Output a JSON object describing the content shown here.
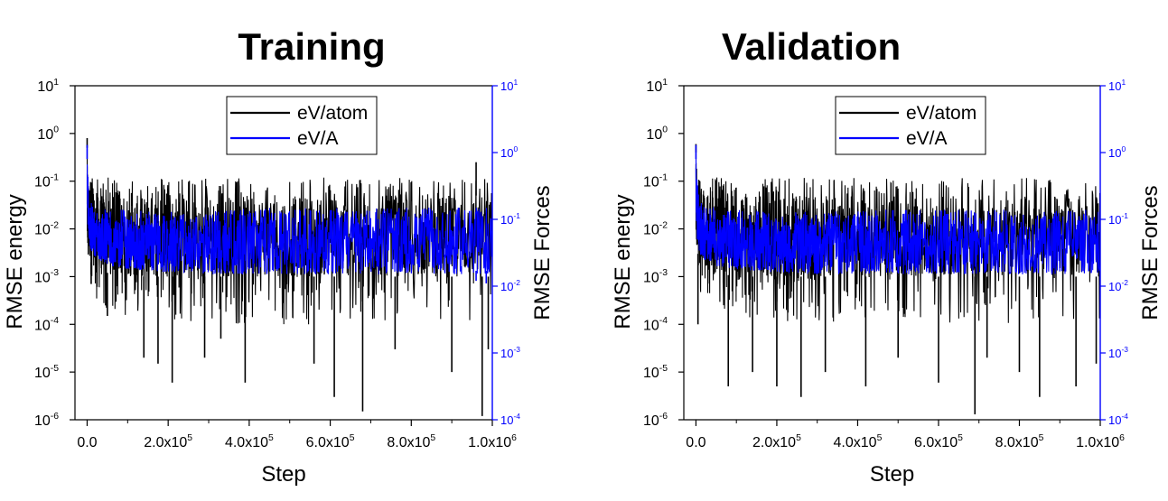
{
  "chart_data": [
    {
      "type": "line",
      "title": "Training",
      "xlabel": "Step",
      "ylabel": "RMSE energy",
      "y2label": "RMSE Forces",
      "xlim": [
        -30000,
        1000000
      ],
      "ylim": [
        1e-06,
        10
      ],
      "y2lim": [
        0.0001,
        10
      ],
      "yscale": "log",
      "y2scale": "log",
      "x_ticks": [
        {
          "v": 0,
          "label": "0.0",
          "exp": ""
        },
        {
          "v": 200000,
          "label": "2.0x10",
          "exp": "5"
        },
        {
          "v": 400000,
          "label": "4.0x10",
          "exp": "5"
        },
        {
          "v": 600000,
          "label": "6.0x10",
          "exp": "5"
        },
        {
          "v": 800000,
          "label": "8.0x10",
          "exp": "5"
        },
        {
          "v": 1000000,
          "label": "1.0x10",
          "exp": "6"
        }
      ],
      "y_ticks": [
        {
          "v": 10,
          "label": "10",
          "exp": "1"
        },
        {
          "v": 1,
          "label": "10",
          "exp": "0"
        },
        {
          "v": 0.1,
          "label": "10",
          "exp": "-1"
        },
        {
          "v": 0.01,
          "label": "10",
          "exp": "-2"
        },
        {
          "v": 0.001,
          "label": "10",
          "exp": "-3"
        },
        {
          "v": 0.0001,
          "label": "10",
          "exp": "-4"
        },
        {
          "v": 1e-05,
          "label": "10",
          "exp": "-5"
        },
        {
          "v": 1e-06,
          "label": "10",
          "exp": "-6"
        }
      ],
      "y2_ticks": [
        {
          "v": 10,
          "label": "10",
          "exp": "1"
        },
        {
          "v": 1,
          "label": "10",
          "exp": "0"
        },
        {
          "v": 0.1,
          "label": "10",
          "exp": "-1"
        },
        {
          "v": 0.01,
          "label": "10",
          "exp": "-2"
        },
        {
          "v": 0.001,
          "label": "10",
          "exp": "-3"
        },
        {
          "v": 0.0001,
          "label": "10",
          "exp": "-4"
        }
      ],
      "legend_position": "top-center",
      "series": [
        {
          "name": "eV/atom",
          "axis": "left",
          "color": "#000000",
          "x": [
            0,
            2000,
            5000,
            10000,
            20000,
            50000,
            100000,
            200000,
            300000,
            400000,
            500000,
            600000,
            700000,
            800000,
            900000,
            1000000
          ],
          "upper": [
            0.8,
            0.3,
            0.15,
            0.12,
            0.12,
            0.12,
            0.12,
            0.12,
            0.12,
            0.12,
            0.12,
            0.12,
            0.12,
            0.12,
            0.12,
            0.12
          ],
          "lower": [
            0.01,
            0.003,
            0.001,
            0.0005,
            0.0003,
            0.0002,
            0.00015,
            0.00012,
            0.0001,
            0.0001,
            0.0001,
            0.0001,
            0.0001,
            0.0001,
            0.0001,
            0.0001
          ],
          "band_upper": [
            0.5,
            0.15,
            0.08,
            0.06,
            0.05,
            0.05,
            0.05,
            0.05,
            0.05,
            0.05,
            0.05,
            0.05,
            0.05,
            0.05,
            0.05,
            0.05
          ],
          "band_lower": [
            0.01,
            0.005,
            0.003,
            0.002,
            0.0015,
            0.0012,
            0.001,
            0.001,
            0.001,
            0.001,
            0.001,
            0.001,
            0.001,
            0.001,
            0.001,
            0.001
          ],
          "spikes": [
            {
              "x": 0,
              "y": 0.8
            },
            {
              "x": 10000,
              "y": 0.0007
            },
            {
              "x": 50000,
              "y": 0.00015
            },
            {
              "x": 140000,
              "y": 2e-05
            },
            {
              "x": 175000,
              "y": 1.5e-05
            },
            {
              "x": 210000,
              "y": 6e-06
            },
            {
              "x": 290000,
              "y": 2e-05
            },
            {
              "x": 330000,
              "y": 5e-05
            },
            {
              "x": 390000,
              "y": 6e-06
            },
            {
              "x": 560000,
              "y": 1.5e-05
            },
            {
              "x": 610000,
              "y": 3e-06
            },
            {
              "x": 680000,
              "y": 1.5e-06
            },
            {
              "x": 760000,
              "y": 3e-05
            },
            {
              "x": 900000,
              "y": 1e-05
            },
            {
              "x": 960000,
              "y": 0.25
            },
            {
              "x": 975000,
              "y": 1.2e-06
            },
            {
              "x": 990000,
              "y": 3e-05
            }
          ]
        },
        {
          "name": "eV/A",
          "axis": "right",
          "color": "#0000ff",
          "x": [
            0,
            2000,
            5000,
            10000,
            20000,
            50000,
            100000,
            200000,
            300000,
            400000,
            500000,
            600000,
            700000,
            800000,
            900000,
            1000000
          ],
          "upper": [
            1.2,
            0.5,
            0.3,
            0.2,
            0.16,
            0.15,
            0.14,
            0.13,
            0.13,
            0.15,
            0.15,
            0.15,
            0.15,
            0.15,
            0.15,
            0.15
          ],
          "lower": [
            0.15,
            0.06,
            0.04,
            0.03,
            0.025,
            0.02,
            0.018,
            0.016,
            0.015,
            0.015,
            0.015,
            0.015,
            0.015,
            0.015,
            0.015,
            0.015
          ],
          "band_upper": [
            0.8,
            0.3,
            0.16,
            0.12,
            0.1,
            0.1,
            0.1,
            0.1,
            0.1,
            0.12,
            0.12,
            0.12,
            0.12,
            0.12,
            0.12,
            0.12
          ],
          "band_lower": [
            0.2,
            0.08,
            0.05,
            0.035,
            0.028,
            0.024,
            0.02,
            0.018,
            0.017,
            0.017,
            0.017,
            0.017,
            0.017,
            0.017,
            0.017,
            0.017
          ],
          "spikes": [
            {
              "x": 0,
              "y": 1.3
            },
            {
              "x": 960000,
              "y": 0.012
            },
            {
              "x": 985000,
              "y": 0.011
            }
          ]
        }
      ]
    },
    {
      "type": "line",
      "title": "Validation",
      "xlabel": "Step",
      "ylabel": "RMSE energy",
      "y2label": "RMSE Forces",
      "xlim": [
        -30000,
        1000000
      ],
      "ylim": [
        1e-06,
        10
      ],
      "y2lim": [
        0.0001,
        10
      ],
      "yscale": "log",
      "y2scale": "log",
      "x_ticks": [
        {
          "v": 0,
          "label": "0.0",
          "exp": ""
        },
        {
          "v": 200000,
          "label": "2.0x10",
          "exp": "5"
        },
        {
          "v": 400000,
          "label": "4.0x10",
          "exp": "5"
        },
        {
          "v": 600000,
          "label": "6.0x10",
          "exp": "5"
        },
        {
          "v": 800000,
          "label": "8.0x10",
          "exp": "5"
        },
        {
          "v": 1000000,
          "label": "1.0x10",
          "exp": "6"
        }
      ],
      "y_ticks": [
        {
          "v": 10,
          "label": "10",
          "exp": "1"
        },
        {
          "v": 1,
          "label": "10",
          "exp": "0"
        },
        {
          "v": 0.1,
          "label": "10",
          "exp": "-1"
        },
        {
          "v": 0.01,
          "label": "10",
          "exp": "-2"
        },
        {
          "v": 0.001,
          "label": "10",
          "exp": "-3"
        },
        {
          "v": 0.0001,
          "label": "10",
          "exp": "-4"
        },
        {
          "v": 1e-05,
          "label": "10",
          "exp": "-5"
        },
        {
          "v": 1e-06,
          "label": "10",
          "exp": "-6"
        }
      ],
      "y2_ticks": [
        {
          "v": 10,
          "label": "10",
          "exp": "1"
        },
        {
          "v": 1,
          "label": "10",
          "exp": "0"
        },
        {
          "v": 0.1,
          "label": "10",
          "exp": "-1"
        },
        {
          "v": 0.01,
          "label": "10",
          "exp": "-2"
        },
        {
          "v": 0.001,
          "label": "10",
          "exp": "-3"
        },
        {
          "v": 0.0001,
          "label": "10",
          "exp": "-4"
        }
      ],
      "legend_position": "top-center",
      "series": [
        {
          "name": "eV/atom",
          "axis": "left",
          "color": "#000000",
          "x": [
            0,
            2000,
            5000,
            10000,
            20000,
            50000,
            100000,
            200000,
            300000,
            400000,
            500000,
            600000,
            700000,
            800000,
            900000,
            1000000
          ],
          "upper": [
            0.6,
            0.3,
            0.15,
            0.12,
            0.12,
            0.12,
            0.12,
            0.12,
            0.12,
            0.12,
            0.12,
            0.12,
            0.12,
            0.12,
            0.12,
            0.12
          ],
          "lower": [
            0.01,
            0.003,
            0.001,
            0.0005,
            0.0003,
            0.0002,
            0.00015,
            0.00012,
            0.0001,
            0.0001,
            0.0001,
            0.0001,
            0.0001,
            0.0001,
            0.0001,
            0.0001
          ],
          "band_upper": [
            0.4,
            0.15,
            0.08,
            0.06,
            0.05,
            0.05,
            0.05,
            0.05,
            0.05,
            0.05,
            0.05,
            0.05,
            0.05,
            0.05,
            0.05,
            0.05
          ],
          "band_lower": [
            0.01,
            0.005,
            0.003,
            0.002,
            0.0015,
            0.0012,
            0.001,
            0.001,
            0.001,
            0.001,
            0.001,
            0.001,
            0.001,
            0.001,
            0.001,
            0.001
          ],
          "spikes": [
            {
              "x": 0,
              "y": 0.6
            },
            {
              "x": 5000,
              "y": 0.0001
            },
            {
              "x": 30000,
              "y": 0.002
            },
            {
              "x": 80000,
              "y": 5e-06
            },
            {
              "x": 140000,
              "y": 1e-05
            },
            {
              "x": 200000,
              "y": 5e-06
            },
            {
              "x": 260000,
              "y": 3e-06
            },
            {
              "x": 320000,
              "y": 1e-05
            },
            {
              "x": 420000,
              "y": 5e-06
            },
            {
              "x": 500000,
              "y": 2e-05
            },
            {
              "x": 600000,
              "y": 6e-06
            },
            {
              "x": 690000,
              "y": 1.3e-06
            },
            {
              "x": 720000,
              "y": 2e-05
            },
            {
              "x": 800000,
              "y": 1e-05
            },
            {
              "x": 850000,
              "y": 3e-06
            },
            {
              "x": 940000,
              "y": 5e-06
            },
            {
              "x": 990000,
              "y": 1.5e-05
            }
          ]
        },
        {
          "name": "eV/A",
          "axis": "right",
          "color": "#0000ff",
          "x": [
            0,
            2000,
            5000,
            10000,
            20000,
            50000,
            100000,
            200000,
            300000,
            400000,
            500000,
            600000,
            700000,
            800000,
            900000,
            1000000
          ],
          "upper": [
            1.2,
            0.5,
            0.3,
            0.2,
            0.16,
            0.15,
            0.14,
            0.13,
            0.13,
            0.14,
            0.14,
            0.14,
            0.14,
            0.14,
            0.14,
            0.14
          ],
          "lower": [
            0.15,
            0.06,
            0.04,
            0.03,
            0.025,
            0.02,
            0.018,
            0.016,
            0.015,
            0.015,
            0.015,
            0.015,
            0.015,
            0.015,
            0.015,
            0.015
          ],
          "band_upper": [
            0.8,
            0.3,
            0.16,
            0.12,
            0.1,
            0.1,
            0.1,
            0.1,
            0.1,
            0.11,
            0.11,
            0.11,
            0.11,
            0.11,
            0.11,
            0.11
          ],
          "band_lower": [
            0.2,
            0.08,
            0.05,
            0.035,
            0.028,
            0.024,
            0.02,
            0.018,
            0.017,
            0.017,
            0.017,
            0.017,
            0.017,
            0.017,
            0.017,
            0.017
          ],
          "spikes": [
            {
              "x": 0,
              "y": 1.3
            }
          ]
        }
      ]
    }
  ]
}
